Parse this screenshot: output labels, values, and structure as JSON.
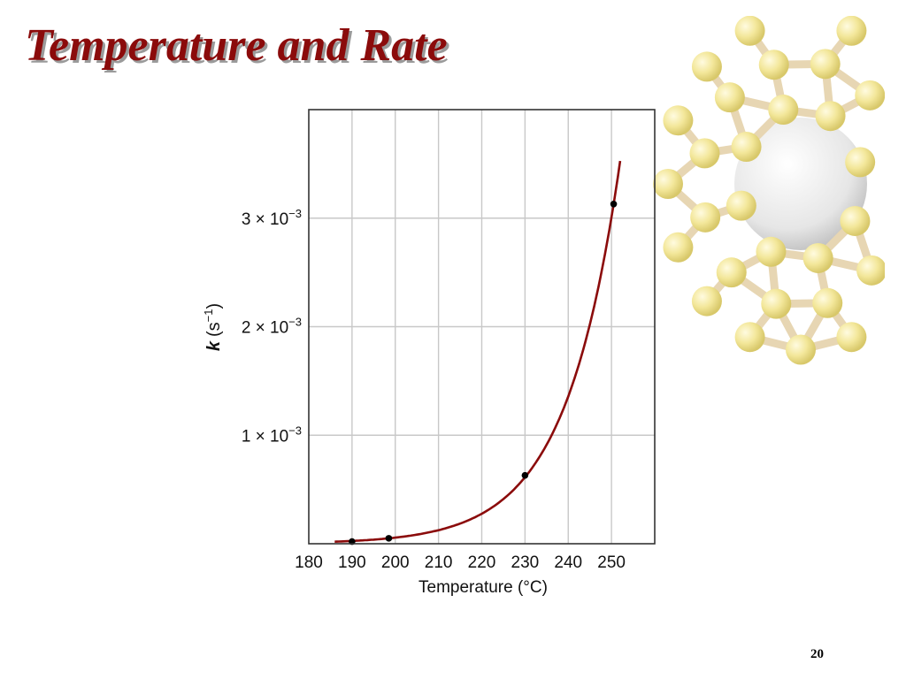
{
  "slide": {
    "title": "Temperature and Rate",
    "page_number": "20"
  },
  "decoration": {
    "name": "fullerene-molecule",
    "ball_color": "#f3e79a",
    "bond_color": "#e7d6b3"
  },
  "colors": {
    "curve": "#8b0b0b",
    "point": "#000000",
    "grid": "#c8c8c8",
    "title": "#8b0b0b"
  },
  "chart_data": {
    "type": "scatter",
    "xlabel": "Temperature (°C)",
    "ylabel_var": "k",
    "ylabel_unit_open": "(s",
    "ylabel_unit_exp": "−1",
    "ylabel_unit_close": ")",
    "xlim": [
      180,
      260
    ],
    "ylim": [
      0,
      0.004
    ],
    "x_ticks": [
      "180",
      "190",
      "200",
      "210",
      "220",
      "230",
      "240",
      "250"
    ],
    "x_tick_values": [
      180,
      190,
      200,
      210,
      220,
      230,
      240,
      250
    ],
    "y_ticks": [
      {
        "value": 0.001,
        "base": "1 × 10",
        "exp": "−3"
      },
      {
        "value": 0.002,
        "base": "2 × 10",
        "exp": "−3"
      },
      {
        "value": 0.003,
        "base": "3 × 10",
        "exp": "−3"
      }
    ],
    "grid": true,
    "series": [
      {
        "points": [
          {
            "x": 190,
            "y": 2e-05
          },
          {
            "x": 198.5,
            "y": 5e-05
          },
          {
            "x": 230,
            "y": 0.00063
          },
          {
            "x": 250.5,
            "y": 0.00313
          }
        ],
        "fit": "exponential"
      }
    ]
  }
}
